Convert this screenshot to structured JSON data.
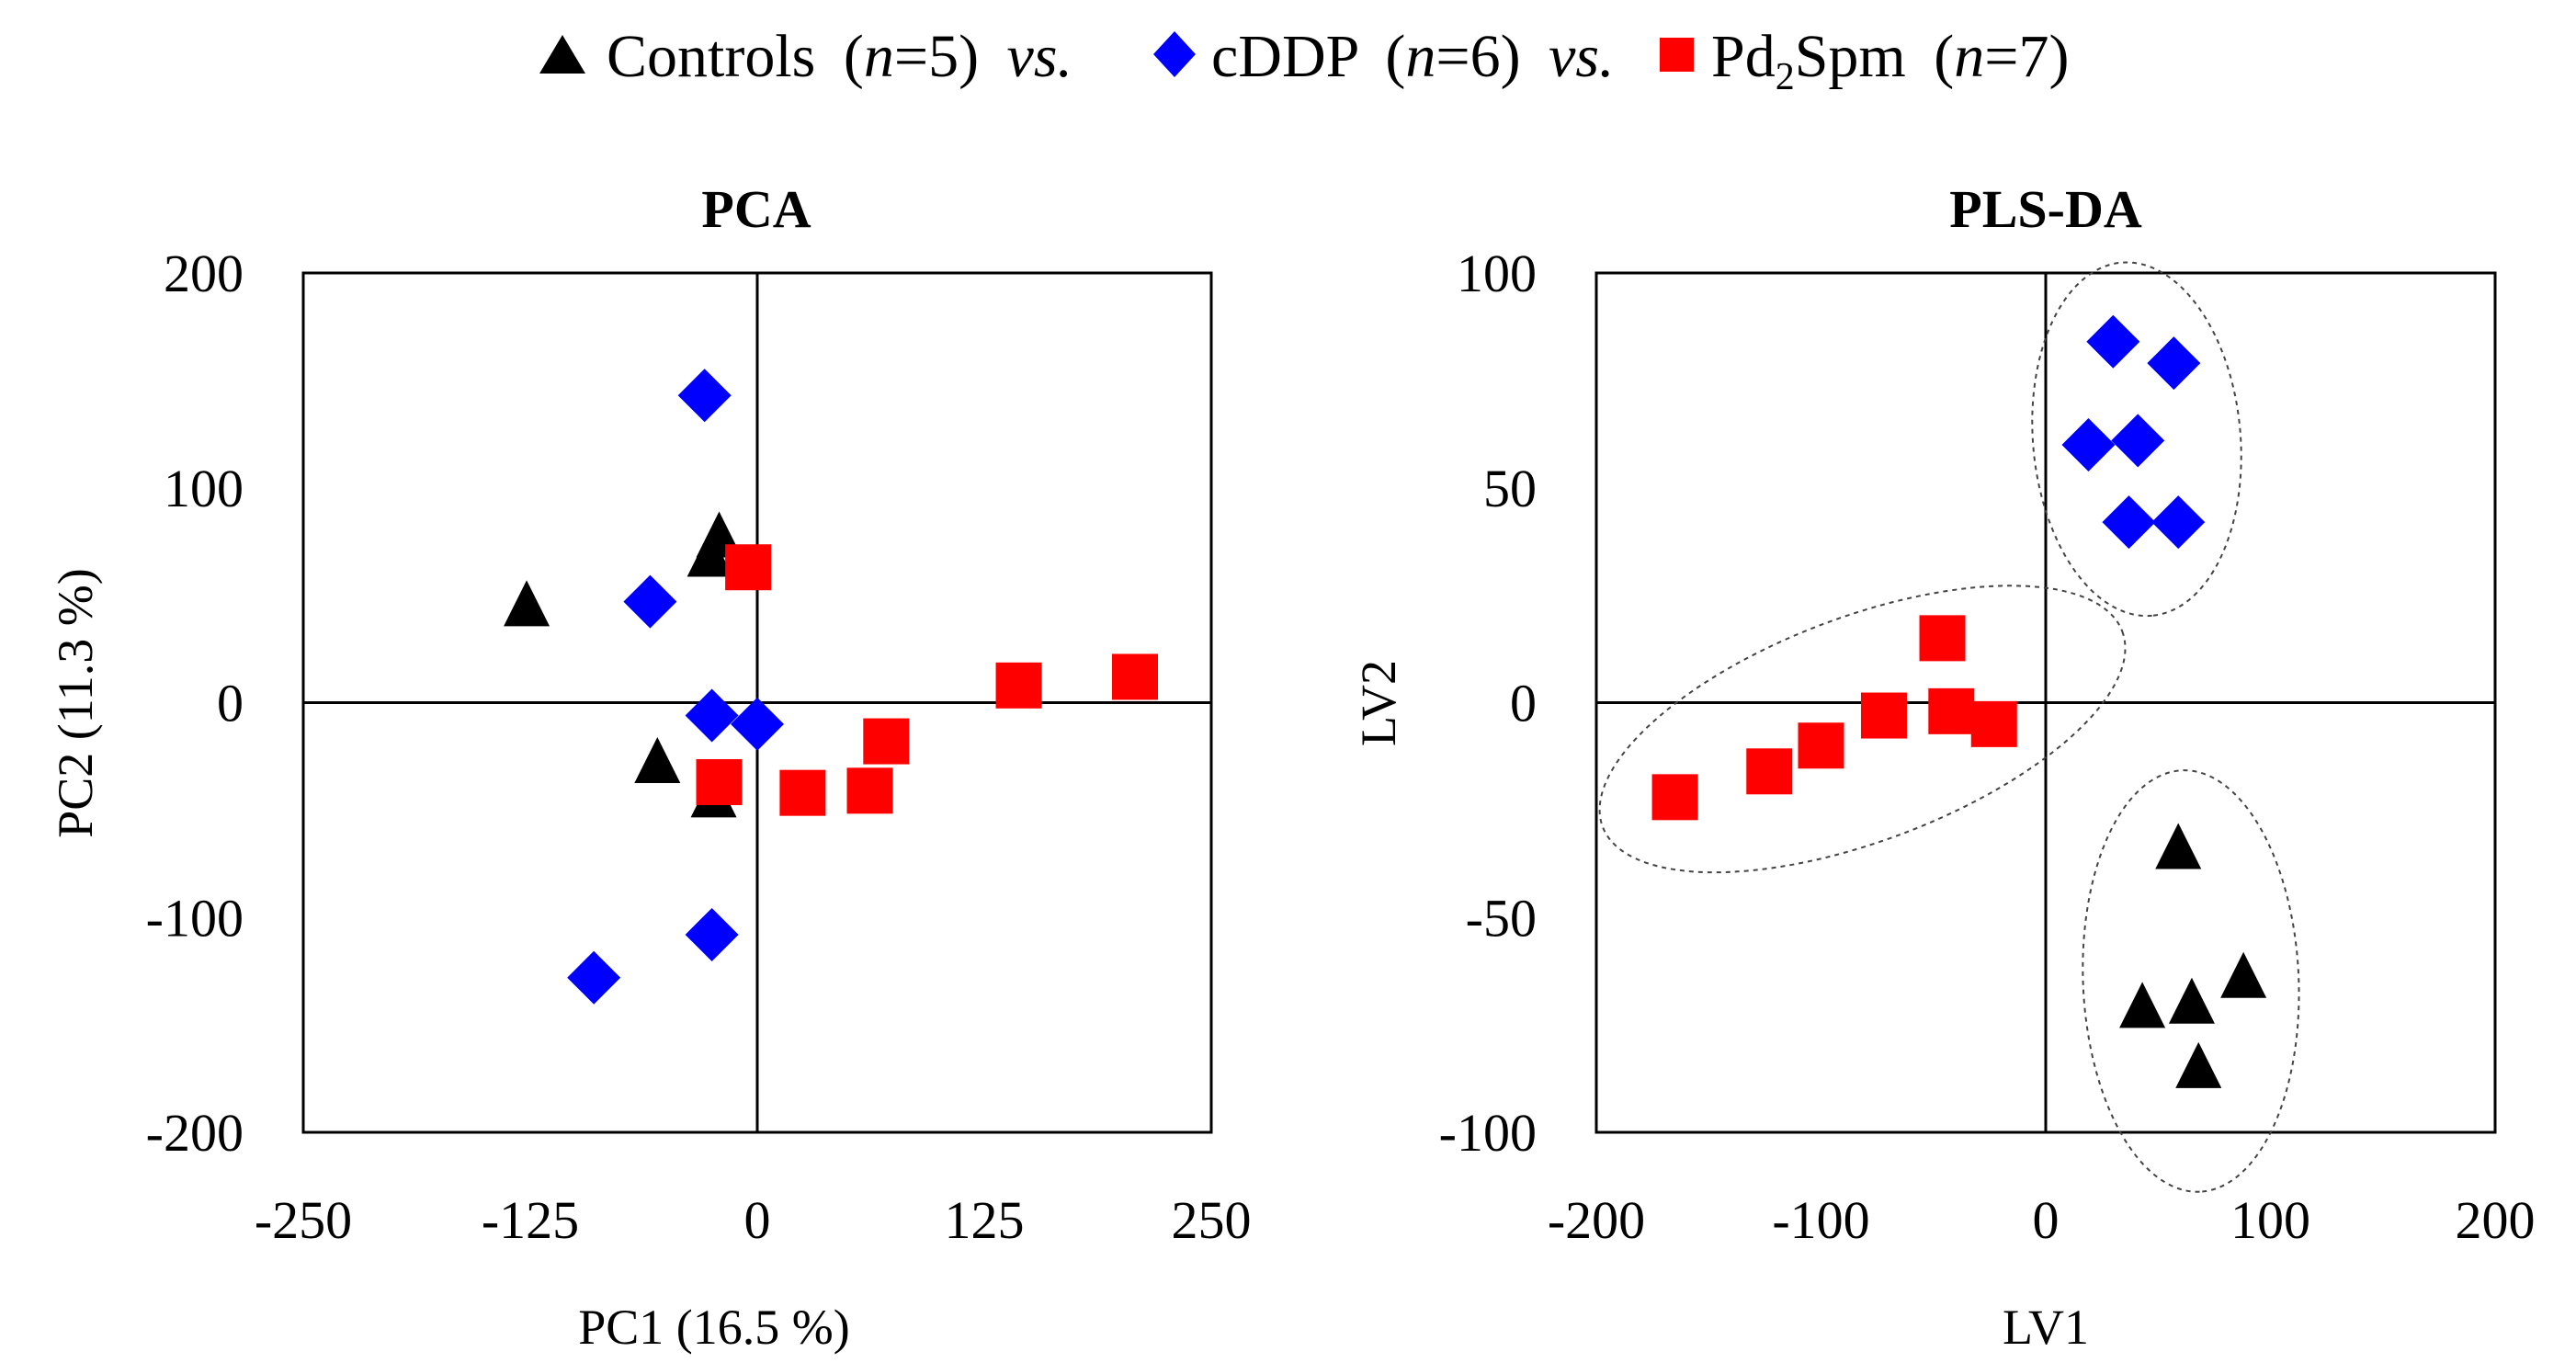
{
  "legend": {
    "controls_label": "Controls",
    "cddp_label": "cDDP",
    "pd_label_main": "Pd",
    "pd_label_sub": "2",
    "pd_label_rest": "Spm",
    "open_paren": "(",
    "n_letter": "n",
    "controls_count": "=5)",
    "cddp_count": "=6)",
    "pd_count": "=7)",
    "vs": "vs."
  },
  "colors": {
    "controls": "#000000",
    "cddp": "#0000FF",
    "pd2spm": "#FF0000"
  },
  "chart_data": [
    {
      "type": "scatter",
      "title": "PCA",
      "xlabel": "PC1 (16.5 %)",
      "ylabel": "PC2 (11.3 %)",
      "xlim": [
        -250,
        250
      ],
      "ylim": [
        -200,
        200
      ],
      "xticks": [
        -250,
        -125,
        0,
        125,
        250
      ],
      "yticks": [
        200,
        100,
        0,
        -100,
        -200
      ],
      "xtick_labels": [
        "-250",
        "-125",
        "0",
        "125",
        "250"
      ],
      "ytick_labels": [
        "200",
        "100",
        "0",
        "-100",
        "-200"
      ],
      "grid": false,
      "series": [
        {
          "name": "Controls",
          "marker": "triangle",
          "color": "#000000",
          "x": [
            -127,
            -26,
            -21,
            -55,
            -24
          ],
          "y": [
            45,
            68,
            77,
            -28,
            -44
          ]
        },
        {
          "name": "cDDP",
          "marker": "diamond",
          "color": "#0000FF",
          "x": [
            -29,
            -59,
            -25,
            0,
            -25,
            -90
          ],
          "y": [
            143,
            47,
            -6,
            -10,
            -108,
            -128
          ]
        },
        {
          "name": "Pd2Spm",
          "marker": "square",
          "color": "#FF0000",
          "x": [
            -5,
            -21,
            25,
            62,
            71,
            144,
            208
          ],
          "y": [
            63,
            -37,
            -42,
            -41,
            -18,
            8,
            12
          ]
        }
      ]
    },
    {
      "type": "scatter",
      "title": "PLS-DA",
      "xlabel": "LV1",
      "ylabel": "LV2",
      "xlim": [
        -200,
        200
      ],
      "ylim": [
        -100,
        100
      ],
      "xticks": [
        -200,
        -100,
        0,
        100,
        200
      ],
      "yticks": [
        100,
        50,
        0,
        -50,
        -100
      ],
      "xtick_labels": [
        "-200",
        "-100",
        "0",
        "100",
        "200"
      ],
      "ytick_labels": [
        "100",
        "50",
        "0",
        "-50",
        "-100"
      ],
      "grid": false,
      "series": [
        {
          "name": "Controls",
          "marker": "triangle",
          "color": "#000000",
          "x": [
            59,
            43,
            65,
            88,
            68
          ],
          "y": [
            -34,
            -71,
            -70,
            -64,
            -85
          ]
        },
        {
          "name": "cDDP",
          "marker": "diamond",
          "color": "#0000FF",
          "x": [
            30,
            57,
            19,
            41,
            37,
            59
          ],
          "y": [
            84,
            79,
            60,
            61,
            42,
            42
          ]
        },
        {
          "name": "Pd2Spm",
          "marker": "square",
          "color": "#FF0000",
          "x": [
            -165,
            -123,
            -100,
            -72,
            -46,
            -42,
            -23
          ],
          "y": [
            -22,
            -16,
            -10,
            -3,
            15,
            -2,
            -5
          ]
        }
      ],
      "group_ellipses": [
        "cDDP",
        "Controls",
        "Pd2Spm"
      ]
    }
  ]
}
